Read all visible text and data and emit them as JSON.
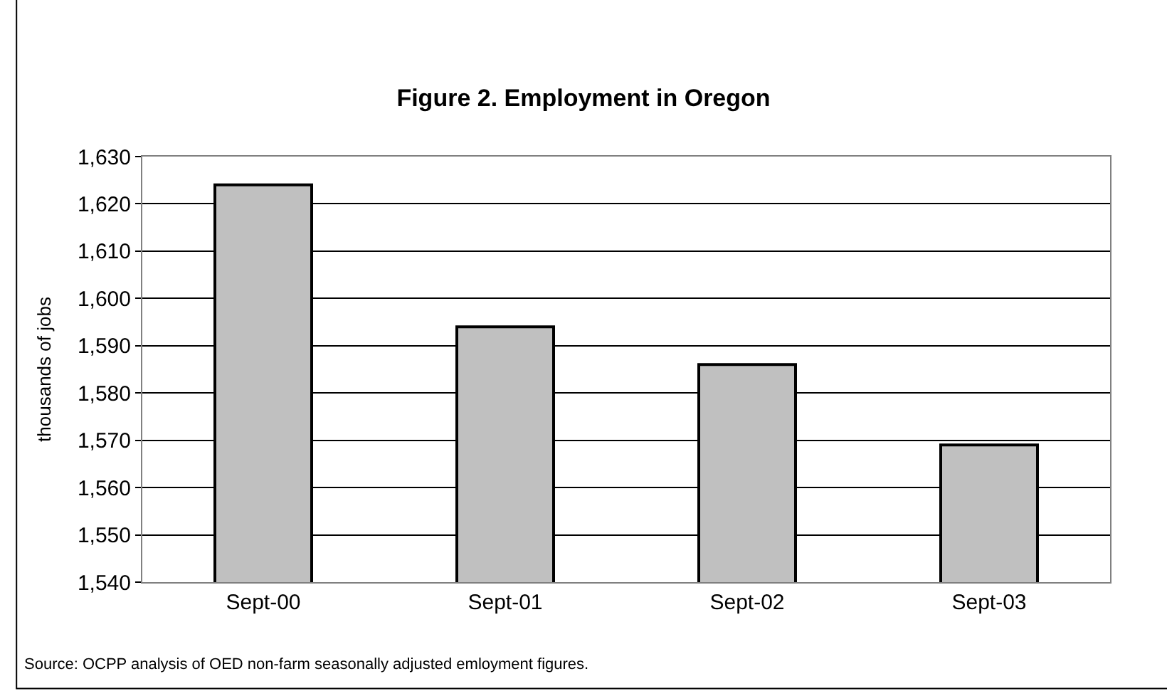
{
  "chart_data": {
    "type": "bar",
    "title": "Figure 2. Employment in Oregon",
    "ylabel": "thousands of jobs",
    "categories": [
      "Sept-00",
      "Sept-01",
      "Sept-02",
      "Sept-03"
    ],
    "values": [
      1624,
      1594,
      1586,
      1569
    ],
    "color": "#c0c0c0",
    "ylim": [
      1540,
      1630
    ],
    "yticks": [
      {
        "value": 1540,
        "label": "1,540"
      },
      {
        "value": 1550,
        "label": "1,550"
      },
      {
        "value": 1560,
        "label": "1,560"
      },
      {
        "value": 1570,
        "label": "1,570"
      },
      {
        "value": 1580,
        "label": "1,580"
      },
      {
        "value": 1590,
        "label": "1,590"
      },
      {
        "value": 1600,
        "label": "1,600"
      },
      {
        "value": 1610,
        "label": "1,610"
      },
      {
        "value": 1620,
        "label": "1,620"
      },
      {
        "value": 1630,
        "label": "1,630"
      }
    ],
    "grid": "y",
    "legend": false,
    "annotations": [
      "Source: OCPP analysis of OED non-farm seasonally adjusted emloyment figures."
    ]
  }
}
